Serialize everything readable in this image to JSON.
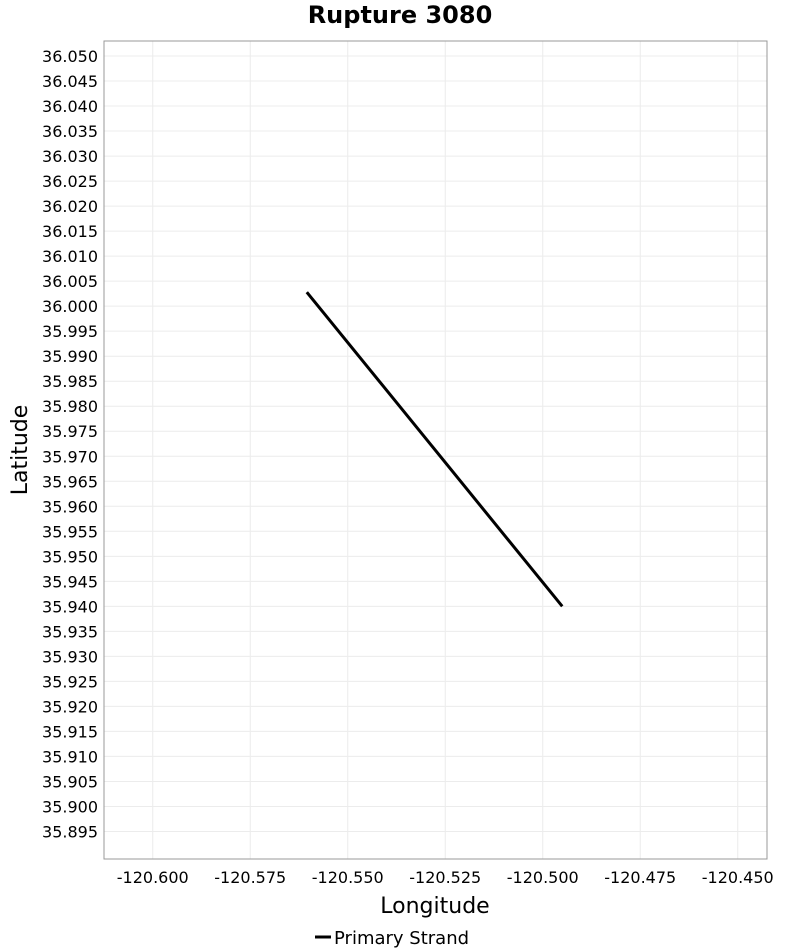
{
  "chart_data": {
    "type": "line",
    "title": "Rupture 3080",
    "xlabel": "Longitude",
    "ylabel": "Latitude",
    "xlim": [
      -120.6125,
      -120.4425
    ],
    "ylim": [
      35.8895,
      36.053
    ],
    "xticks": [
      -120.6,
      -120.575,
      -120.55,
      -120.525,
      -120.5,
      -120.475,
      -120.45
    ],
    "xtick_labels": [
      "-120.600",
      "-120.575",
      "-120.550",
      "-120.525",
      "-120.500",
      "-120.475",
      "-120.450"
    ],
    "yticks": [
      35.895,
      35.9,
      35.905,
      35.91,
      35.915,
      35.92,
      35.925,
      35.93,
      35.935,
      35.94,
      35.945,
      35.95,
      35.955,
      35.96,
      35.965,
      35.97,
      35.975,
      35.98,
      35.985,
      35.99,
      35.995,
      36.0,
      36.005,
      36.01,
      36.015,
      36.02,
      36.025,
      36.03,
      36.035,
      36.04,
      36.045,
      36.05
    ],
    "ytick_labels": [
      "35.895",
      "35.900",
      "35.905",
      "35.910",
      "35.915",
      "35.920",
      "35.925",
      "35.930",
      "35.935",
      "35.940",
      "35.945",
      "35.950",
      "35.955",
      "35.960",
      "35.965",
      "35.970",
      "35.975",
      "35.980",
      "35.985",
      "35.990",
      "35.995",
      "36.000",
      "36.005",
      "36.010",
      "36.015",
      "36.020",
      "36.025",
      "36.030",
      "36.035",
      "36.040",
      "36.045",
      "36.050"
    ],
    "grid": true,
    "legend_position": "bottom-center",
    "series": [
      {
        "name": "Primary Strand",
        "color": "#000000",
        "x": [
          -120.5605,
          -120.495
        ],
        "y": [
          36.0028,
          35.94
        ]
      }
    ]
  },
  "colors": {
    "grid": "#ececec",
    "frame": "#999999",
    "background": "#ffffff"
  }
}
